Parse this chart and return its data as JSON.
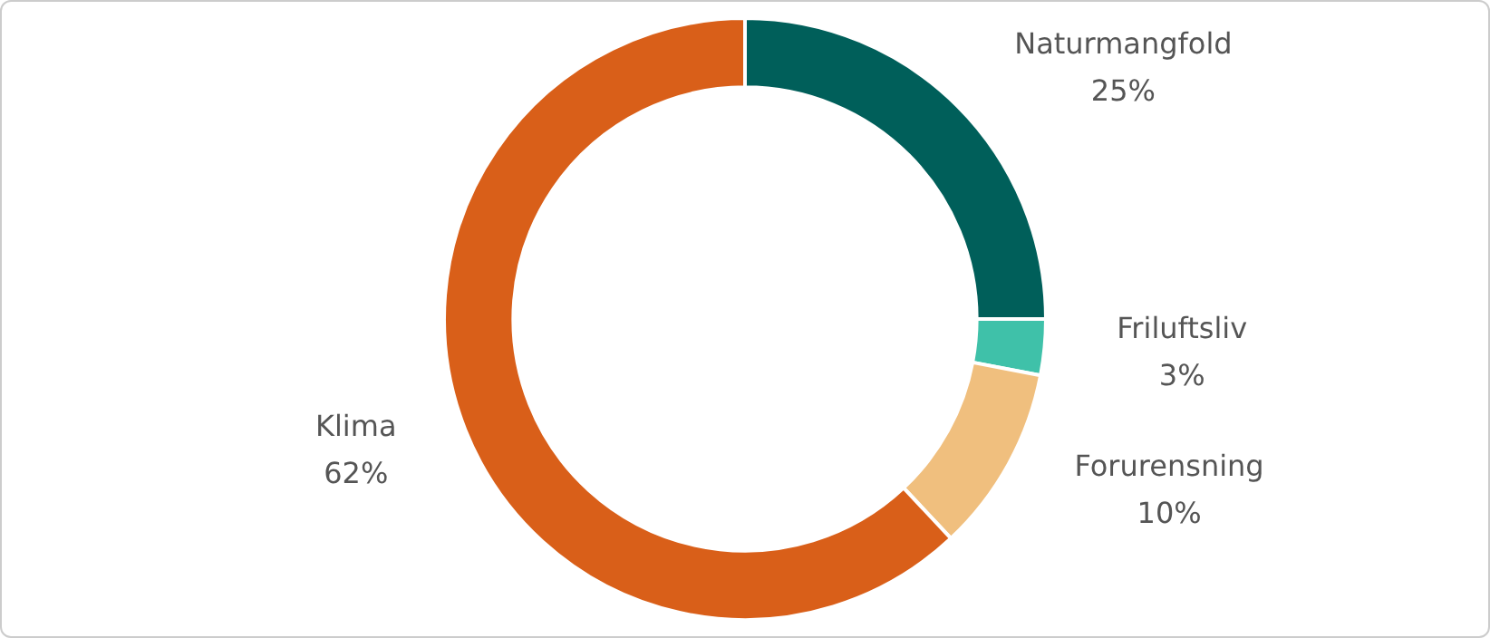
{
  "chart_data": {
    "type": "donut",
    "categories": [
      "Naturmangfold",
      "Friluftsliv",
      "Forurensning",
      "Klima"
    ],
    "values": [
      25,
      3,
      10,
      62
    ],
    "colors": [
      "#005f5a",
      "#3fc1a9",
      "#f0bf7e",
      "#d95f19"
    ],
    "value_labels": [
      "25%",
      "3%",
      "10%",
      "62%"
    ],
    "legend": false
  }
}
